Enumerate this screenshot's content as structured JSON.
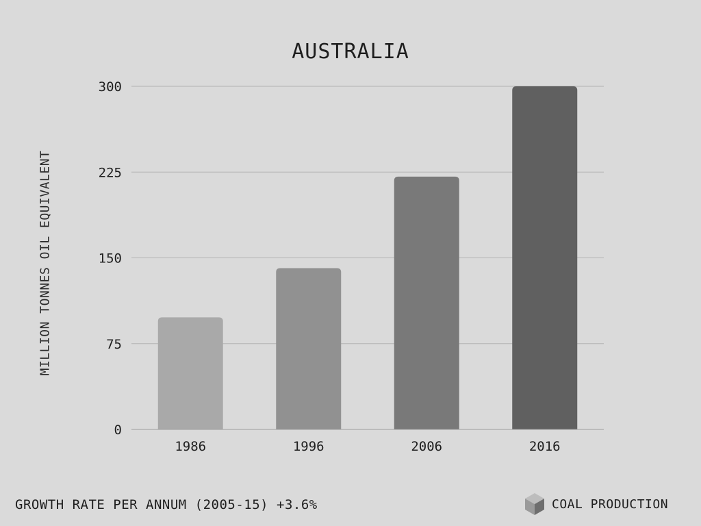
{
  "title": "AUSTRALIA",
  "footer": {
    "growth_text": "GROWTH RATE PER ANNUM (2005-15) +3.6%",
    "legend_label": "COAL PRODUCTION",
    "legend_icon": "cube-icon"
  },
  "colors": {
    "background": "#dadada",
    "gridline": "#b3b3b3",
    "bar_1986": "#a9a9a9",
    "bar_1996": "#919191",
    "bar_2006": "#797979",
    "bar_2016": "#606060"
  },
  "chart_data": {
    "type": "bar",
    "title": "AUSTRALIA",
    "xlabel": "",
    "ylabel": "MILLION TONNES OIL EQUIVALENT",
    "categories": [
      "1986",
      "1996",
      "2006",
      "2016"
    ],
    "values": [
      98,
      141,
      221,
      300
    ],
    "ylim": [
      0,
      300
    ],
    "yticks": [
      0,
      75,
      150,
      225,
      300
    ],
    "grid": true,
    "series": [
      {
        "name": "COAL PRODUCTION",
        "values": [
          98,
          141,
          221,
          300
        ]
      }
    ]
  }
}
